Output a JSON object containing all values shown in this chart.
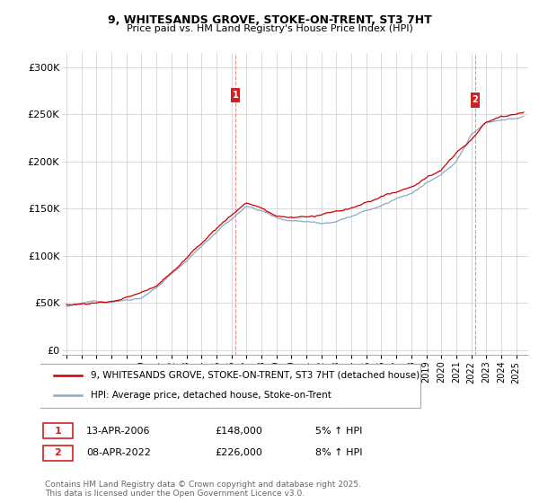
{
  "title": "9, WHITESANDS GROVE, STOKE-ON-TRENT, ST3 7HT",
  "subtitle": "Price paid vs. HM Land Registry's House Price Index (HPI)",
  "ylabel_ticks": [
    "£0",
    "£50K",
    "£100K",
    "£150K",
    "£200K",
    "£250K",
    "£300K"
  ],
  "ytick_values": [
    0,
    50000,
    100000,
    150000,
    200000,
    250000,
    300000
  ],
  "ylim": [
    -5000,
    315000
  ],
  "xlim_start": 1994.7,
  "xlim_end": 2025.8,
  "sale1_date": 2006.28,
  "sale1_price": 148000,
  "sale1_label": "1",
  "sale2_date": 2022.27,
  "sale2_price": 226000,
  "sale2_label": "2",
  "red_color": "#cc0000",
  "blue_color": "#88aacc",
  "vline_color": "#dd4444",
  "marker_box_color": "#cc2222",
  "legend_line1": "9, WHITESANDS GROVE, STOKE-ON-TRENT, ST3 7HT (detached house)",
  "legend_line2": "HPI: Average price, detached house, Stoke-on-Trent",
  "table_row1": [
    "1",
    "13-APR-2006",
    "£148,000",
    "5% ↑ HPI"
  ],
  "table_row2": [
    "2",
    "08-APR-2022",
    "£226,000",
    "8% ↑ HPI"
  ],
  "footer": "Contains HM Land Registry data © Crown copyright and database right 2025.\nThis data is licensed under the Open Government Licence v3.0.",
  "background_color": "#ffffff",
  "grid_color": "#cccccc",
  "xtick_years": [
    1995,
    1996,
    1997,
    1998,
    1999,
    2000,
    2001,
    2002,
    2003,
    2004,
    2005,
    2006,
    2007,
    2008,
    2009,
    2010,
    2011,
    2012,
    2013,
    2014,
    2015,
    2016,
    2017,
    2018,
    2019,
    2020,
    2021,
    2022,
    2023,
    2024,
    2025
  ]
}
